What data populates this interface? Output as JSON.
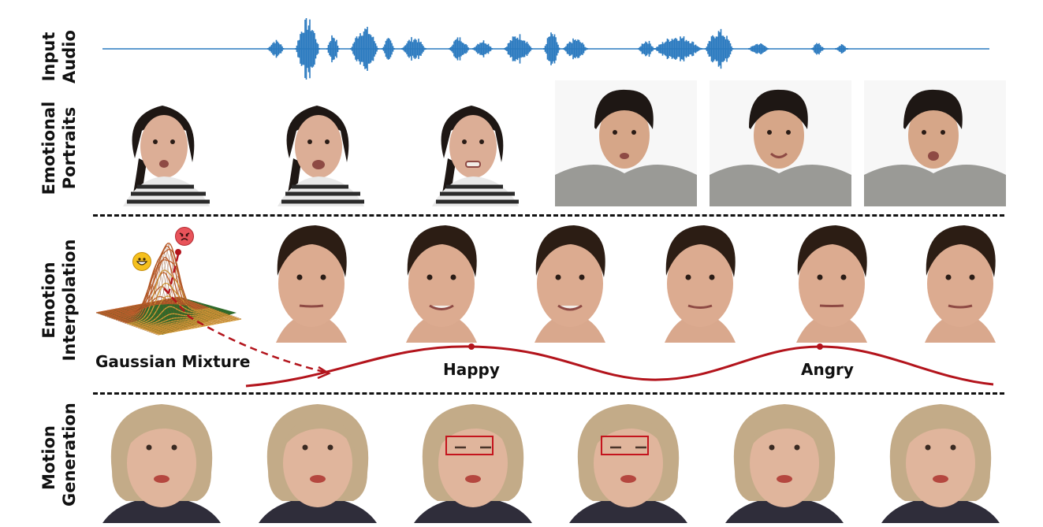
{
  "rows": {
    "audio": {
      "line1": "Input",
      "line2": "Audio"
    },
    "portraits": {
      "line1": "Emotional",
      "line2": "Portraits"
    },
    "interpolation": {
      "line1": "Emotion",
      "line2": "Interpolation"
    },
    "motion": {
      "line1": "Motion",
      "line2": "Generation"
    }
  },
  "labels": {
    "gaussian": "Gaussian Mixture",
    "happy": "Happy",
    "angry": "Angry"
  },
  "colors": {
    "waveform": "#2a7abf",
    "curve": "#b3141c",
    "eye_box": "#c4141d",
    "skin": "#e0b59c",
    "hair_dark": "#1e1714",
    "hair_blonde": "#c3ab88",
    "stripes": "#2b2b2b",
    "hoodie": "#9a9a96"
  },
  "icons": {
    "happy": "grinning-face-emoji",
    "angry": "angry-face-emoji"
  }
}
